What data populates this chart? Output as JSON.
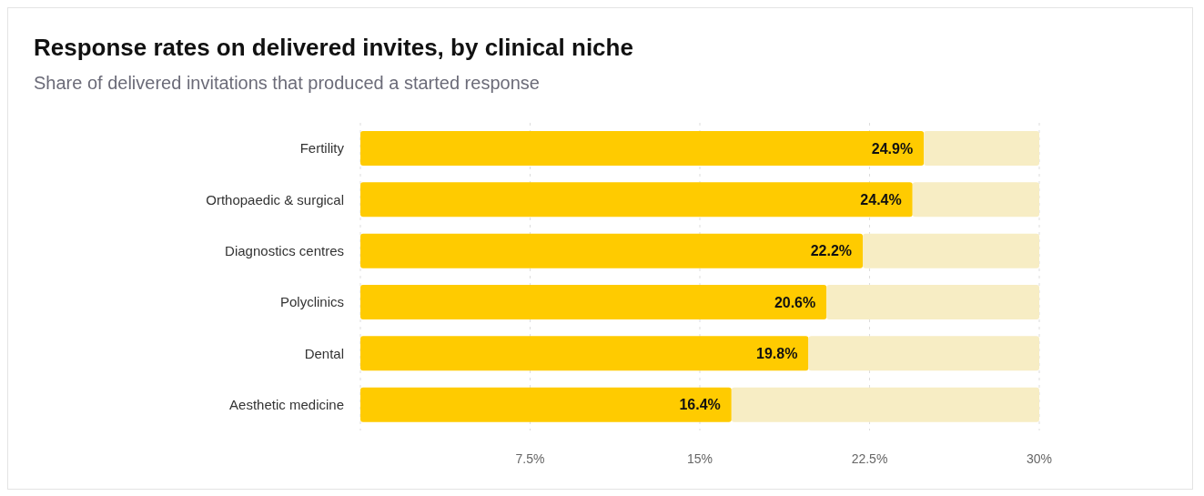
{
  "chart_data": {
    "type": "bar",
    "orientation": "horizontal",
    "title": "Response rates on delivered invites, by clinical niche",
    "subtitle": "Share of delivered invitations that produced a started response",
    "categories": [
      "Fertility",
      "Orthopaedic & surgical",
      "Diagnostics centres",
      "Polyclinics",
      "Dental",
      "Aesthetic medicine"
    ],
    "stacked": true,
    "series": [
      {
        "color": "#ffcb00",
        "values": [
          24.9,
          24.4,
          22.2,
          20.6,
          19.8,
          16.4
        ],
        "value_labels": [
          "24.9%",
          "24.4%",
          "22.2%",
          "20.6%",
          "19.8%",
          "16.4%"
        ]
      },
      {
        "color": "#f7edc4",
        "values": [
          5.1,
          5.6,
          7.8,
          9.4,
          10.2,
          13.6
        ]
      }
    ],
    "xlim": [
      0,
      30
    ],
    "xticks": [
      {
        "value": 7.5,
        "label": "7.5%"
      },
      {
        "value": 15,
        "label": "15%"
      },
      {
        "value": 22.5,
        "label": "22.5%"
      },
      {
        "value": 30,
        "label": "30%"
      }
    ],
    "grid": "x"
  }
}
